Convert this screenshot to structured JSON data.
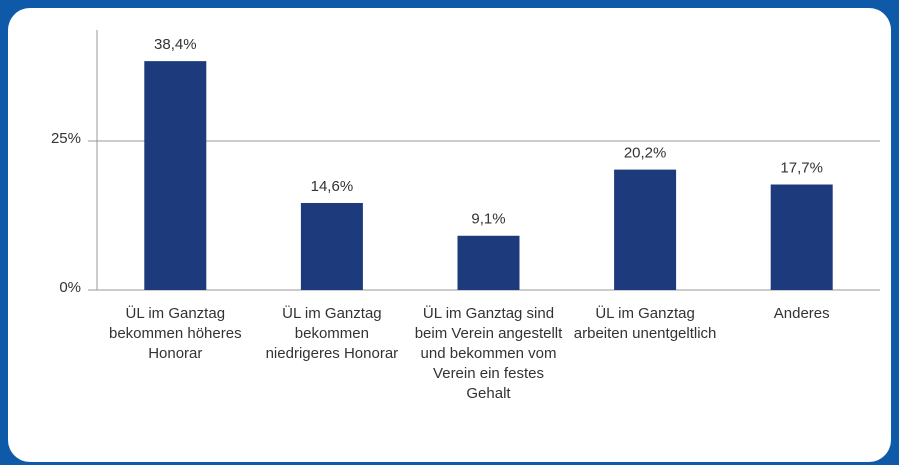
{
  "chart_data": {
    "type": "bar",
    "categories": [
      "ÜL im Ganztag bekommen höheres Honorar",
      "ÜL im Ganztag bekommen niedrigeres Honorar",
      "ÜL im Ganztag sind beim Verein angestellt und bekommen vom Verein ein festes Gehalt",
      "ÜL im Ganztag arbeiten unentgeltlich",
      "Anderes"
    ],
    "values": [
      38.4,
      14.6,
      9.1,
      20.2,
      17.7
    ],
    "value_labels": [
      "38,4%",
      "14,6%",
      "9,1%",
      "20,2%",
      "17,7%"
    ],
    "color": "#1c3a7c",
    "ylim": [
      0,
      40
    ],
    "yticks": [
      {
        "value": 0,
        "label": "0%"
      },
      {
        "value": 25,
        "label": "25%"
      }
    ],
    "grid": true
  }
}
